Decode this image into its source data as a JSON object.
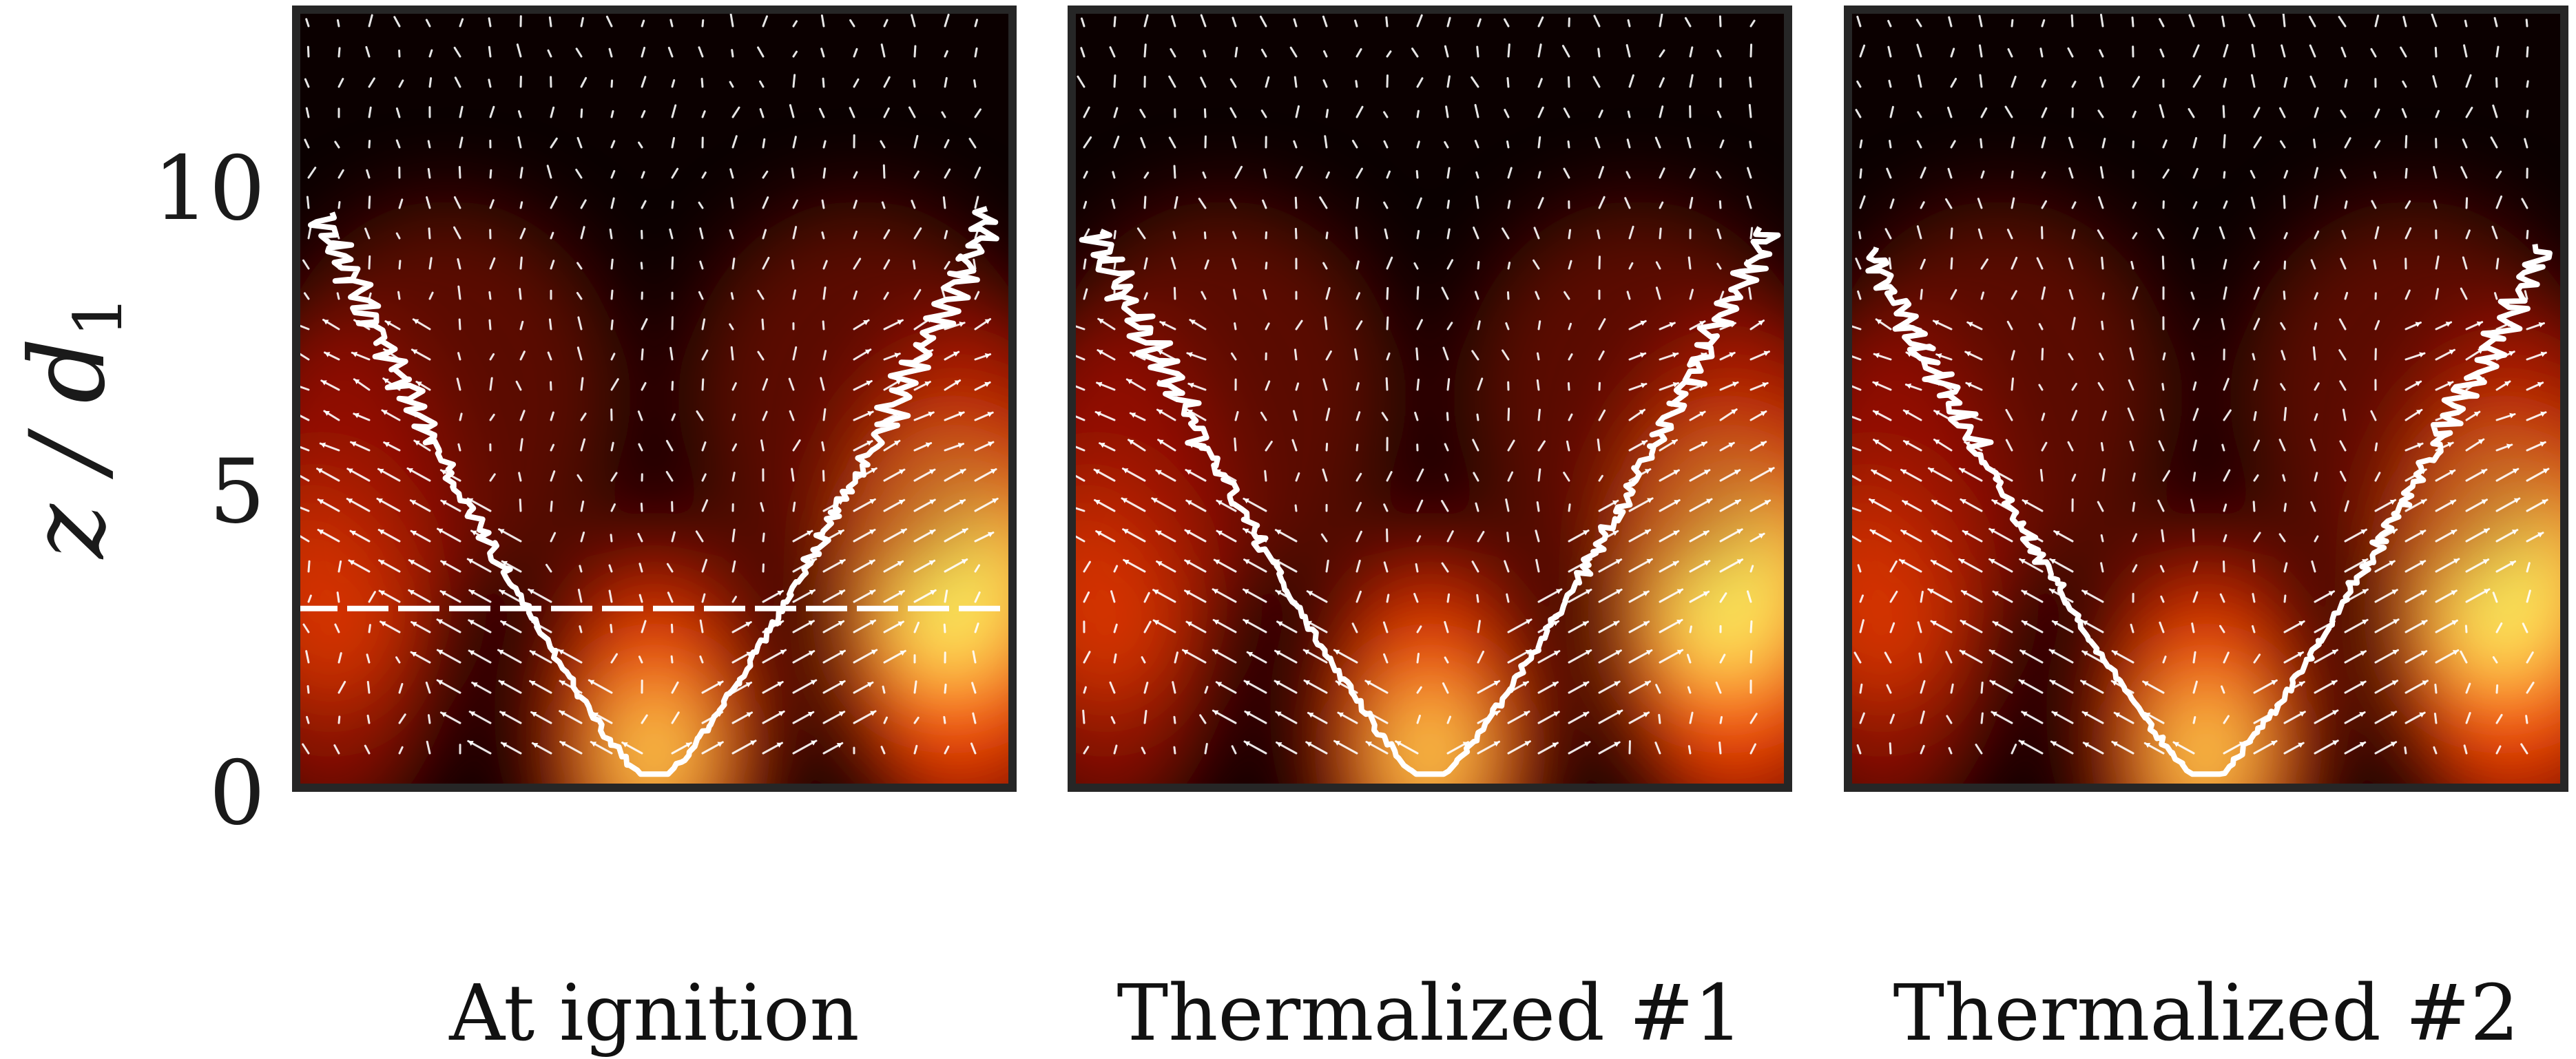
{
  "y_axis": {
    "label_main": "z / d",
    "label_sub": "1",
    "ticks": [
      "10",
      "5",
      "0"
    ],
    "tick_values": [
      10,
      5,
      0
    ],
    "range": [
      -2.0,
      12.4
    ]
  },
  "panels": [
    {
      "caption": "At ignition",
      "dashed_reference_line": true,
      "dashed_level": 3.0,
      "seed": 11
    },
    {
      "caption": "Thermalized #1",
      "dashed_reference_line": false,
      "seed": 23
    },
    {
      "caption": "Thermalized #2",
      "dashed_reference_line": false,
      "seed": 37
    }
  ],
  "colors": {
    "frame": "#262626",
    "background": "#0b0000",
    "hot_core": "#ffff66",
    "mid": "#ff4a00",
    "outer": "#9a0c00",
    "flame_front": "#ffffff",
    "vector_arrows": "#ffffff",
    "burner_solid": "#9a9a9a",
    "burner_open": "#ffffff"
  },
  "icons": [
    "velocity-vector-arrows",
    "flame-front-contour",
    "burner-nozzle-cross-section"
  ]
}
